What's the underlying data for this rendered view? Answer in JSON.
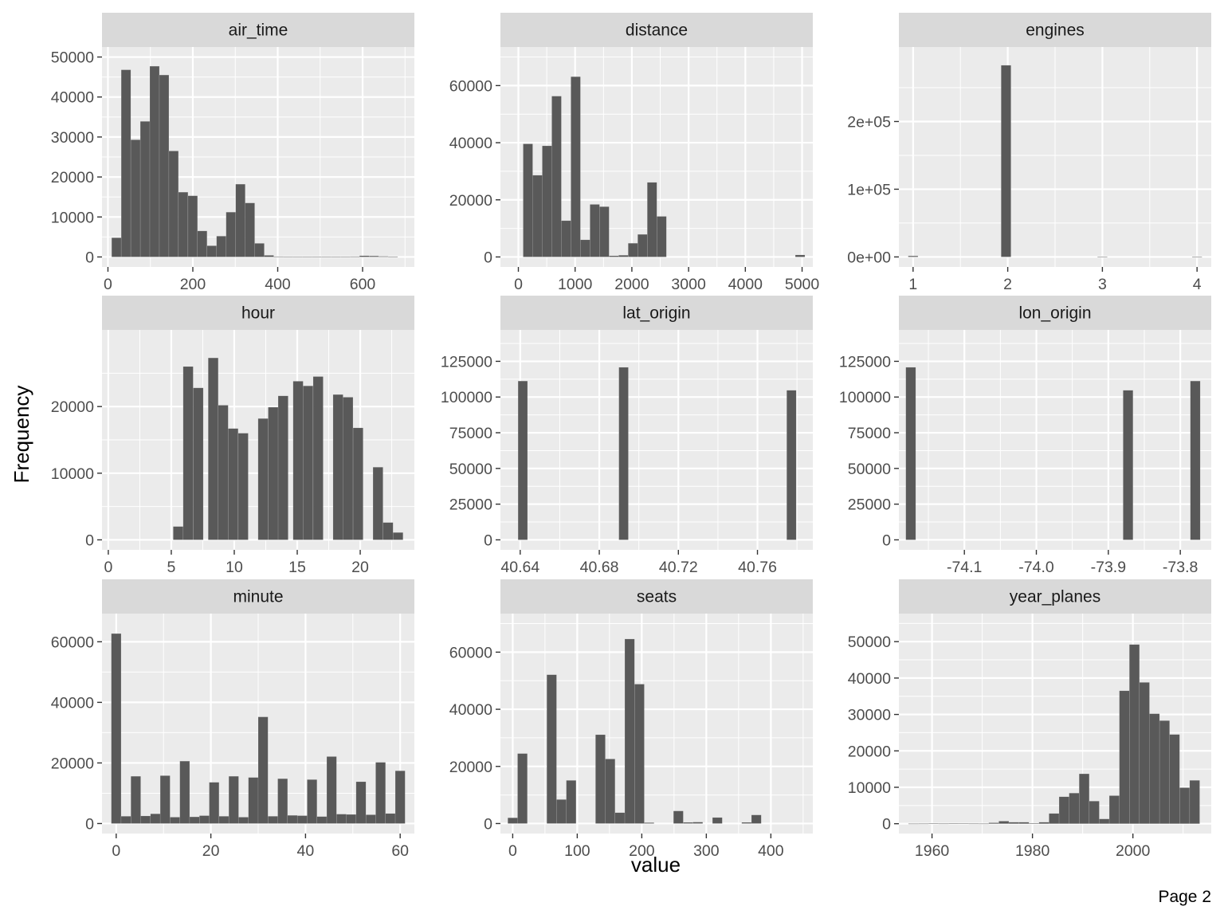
{
  "page_label": "Page 2",
  "colors": {
    "panel_background": "#ebebeb",
    "strip_background": "#d9d9d9",
    "grid_major": "#ffffff",
    "bar_fill": "#595959",
    "text": "#1a1a1a",
    "tick_text": "#4d4d4d",
    "tick_mark": "#333333"
  },
  "chart_data": {
    "type": "bar",
    "subtype": "faceted-histogram",
    "xlabel": "value",
    "ylabel": "Frequency",
    "facets": [
      {
        "title": "air_time",
        "xlim": [
          -14,
          722
        ],
        "xticks": [
          0,
          200,
          400,
          600
        ],
        "xtick_labels": [
          "0",
          "200",
          "400",
          "600"
        ],
        "xminor": [
          100,
          300,
          500,
          700
        ],
        "ylim": [
          -2500,
          52500
        ],
        "yticks": [
          0,
          10000,
          20000,
          30000,
          40000,
          50000
        ],
        "ytick_labels": [
          "0",
          "10000",
          "20000",
          "30000",
          "40000",
          "50000"
        ],
        "yminor": [
          5000,
          15000,
          25000,
          35000,
          45000
        ],
        "bin_width": 22.45,
        "bins": [
          [
            20,
            4800
          ],
          [
            42.5,
            46800
          ],
          [
            65,
            29300
          ],
          [
            87.5,
            33900
          ],
          [
            109.9,
            47700
          ],
          [
            132.4,
            45500
          ],
          [
            154.8,
            26500
          ],
          [
            177.3,
            16200
          ],
          [
            199.8,
            15300
          ],
          [
            222.2,
            6500
          ],
          [
            244.7,
            2800
          ],
          [
            267.1,
            5200
          ],
          [
            289.6,
            11200
          ],
          [
            312.1,
            18200
          ],
          [
            334.5,
            13500
          ],
          [
            357,
            3400
          ],
          [
            379.4,
            400
          ],
          [
            401.9,
            100
          ],
          [
            424.3,
            60
          ],
          [
            446.8,
            40
          ],
          [
            469.3,
            30
          ],
          [
            491.7,
            20
          ],
          [
            514.2,
            20
          ],
          [
            536.6,
            30
          ],
          [
            559.1,
            60
          ],
          [
            581.6,
            100
          ],
          [
            604,
            300
          ],
          [
            626.5,
            250
          ],
          [
            648.9,
            150
          ],
          [
            671.4,
            80
          ]
        ]
      },
      {
        "title": "distance",
        "xlim": [
          -316,
          5189
        ],
        "xticks": [
          0,
          1000,
          2000,
          3000,
          4000,
          5000
        ],
        "xtick_labels": [
          "0",
          "1000",
          "2000",
          "3000",
          "4000",
          "5000"
        ],
        "xminor": [
          500,
          1500,
          2500,
          3500,
          4500
        ],
        "ylim": [
          -3500,
          73500
        ],
        "yticks": [
          0,
          20000,
          40000,
          60000
        ],
        "ytick_labels": [
          "0",
          "20000",
          "40000",
          "60000"
        ],
        "yminor": [
          10000,
          30000,
          50000,
          70000
        ],
        "bin_width": 168.3,
        "bins": [
          [
            168.3,
            39600
          ],
          [
            336.6,
            28600
          ],
          [
            504.9,
            38900
          ],
          [
            673.2,
            56300
          ],
          [
            841.5,
            12700
          ],
          [
            1009.8,
            63100
          ],
          [
            1178.1,
            6000
          ],
          [
            1346.4,
            18400
          ],
          [
            1514.7,
            17600
          ],
          [
            1683,
            400
          ],
          [
            1851.3,
            600
          ],
          [
            2019.6,
            4800
          ],
          [
            2187.9,
            7900
          ],
          [
            2356.2,
            26100
          ],
          [
            2524.5,
            14200
          ],
          [
            4964.9,
            700
          ]
        ]
      },
      {
        "title": "engines",
        "xlim": [
          0.85,
          4.15
        ],
        "xticks": [
          1,
          2,
          3,
          4
        ],
        "xtick_labels": [
          "1",
          "2",
          "3",
          "4"
        ],
        "xminor": [
          1.5,
          2.5,
          3.5
        ],
        "ylim": [
          -14800,
          310000
        ],
        "yticks": [
          0,
          100000,
          200000
        ],
        "ytick_labels": [
          "0e+00",
          "1e+05",
          "2e+05"
        ],
        "yminor": [
          50000,
          150000,
          250000
        ],
        "bin_width": 0.1034,
        "bins": [
          [
            1,
            1500
          ],
          [
            1.9821,
            283000
          ],
          [
            3,
            200
          ],
          [
            4,
            120
          ]
        ]
      },
      {
        "title": "hour",
        "xlim": [
          -0.5,
          24.3
        ],
        "xticks": [
          0,
          5,
          10,
          15,
          20
        ],
        "xtick_labels": [
          "0",
          "5",
          "10",
          "15",
          "20"
        ],
        "xminor": [
          2.5,
          7.5,
          12.5,
          17.5,
          22.5
        ],
        "ylim": [
          -1500,
          31500
        ],
        "yticks": [
          0,
          10000,
          20000
        ],
        "ytick_labels": [
          "0",
          "10000",
          "20000"
        ],
        "yminor": [
          5000,
          15000,
          25000
        ],
        "bin_width": 0.7931,
        "bins": [
          [
            5.55,
            2000
          ],
          [
            6.34,
            26000
          ],
          [
            7.14,
            22800
          ],
          [
            8.33,
            27300
          ],
          [
            9.12,
            20200
          ],
          [
            9.91,
            16700
          ],
          [
            10.71,
            16000
          ],
          [
            12.29,
            18200
          ],
          [
            13.09,
            19900
          ],
          [
            13.88,
            21600
          ],
          [
            15.07,
            23800
          ],
          [
            15.86,
            23100
          ],
          [
            16.66,
            24500
          ],
          [
            18.24,
            21800
          ],
          [
            19.03,
            21400
          ],
          [
            19.83,
            16800
          ],
          [
            21.41,
            10900
          ],
          [
            22.21,
            2600
          ],
          [
            23,
            1100
          ]
        ]
      },
      {
        "title": "lat_origin",
        "xlim": [
          40.63,
          40.788
        ],
        "xticks": [
          40.64,
          40.68,
          40.72,
          40.76
        ],
        "xtick_labels": [
          "40.64",
          "40.68",
          "40.72",
          "40.76"
        ],
        "xminor": [
          40.66,
          40.7,
          40.74,
          40.78
        ],
        "ylim": [
          -7000,
          147000
        ],
        "yticks": [
          0,
          25000,
          50000,
          75000,
          100000,
          125000
        ],
        "ytick_labels": [
          "0",
          "25000",
          "50000",
          "75000",
          "100000",
          "125000"
        ],
        "yminor": [
          12500,
          37500,
          62500,
          87500,
          112500,
          137500
        ],
        "bin_width": 0.00478,
        "bins": [
          [
            40.6413,
            111200
          ],
          [
            40.6923,
            120800
          ],
          [
            40.7772,
            104700
          ]
        ]
      },
      {
        "title": "lon_origin",
        "xlim": [
          -74.191,
          -73.757
        ],
        "xticks": [
          -74.1,
          -74,
          -73.9,
          -73.8
        ],
        "xtick_labels": [
          "-74.1",
          "-74.0",
          "-73.9",
          "-73.8"
        ],
        "xminor": [
          -74.15,
          -74.05,
          -73.95,
          -73.85,
          -73.75
        ],
        "ylim": [
          -7000,
          147000
        ],
        "yticks": [
          0,
          25000,
          50000,
          75000,
          100000,
          125000
        ],
        "ytick_labels": [
          "0",
          "25000",
          "50000",
          "75000",
          "100000",
          "125000"
        ],
        "yminor": [
          12500,
          37500,
          62500,
          87500,
          112500,
          137500
        ],
        "bin_width": 0.0137,
        "bins": [
          [
            -74.1745,
            120800
          ],
          [
            -73.8726,
            104700
          ],
          [
            -73.7792,
            111200
          ]
        ]
      },
      {
        "title": "minute",
        "xlim": [
          -3,
          63
        ],
        "xticks": [
          0,
          20,
          40,
          60
        ],
        "xtick_labels": [
          "0",
          "20",
          "40",
          "60"
        ],
        "xminor": [
          10,
          30,
          50
        ],
        "ylim": [
          -3300,
          69300
        ],
        "yticks": [
          0,
          20000,
          40000,
          60000
        ],
        "ytick_labels": [
          "0",
          "20000",
          "40000",
          "60000"
        ],
        "yminor": [
          10000,
          30000,
          50000
        ],
        "bin_width": 2.07,
        "bins": [
          [
            0,
            62700
          ],
          [
            2.07,
            2400
          ],
          [
            4.14,
            15600
          ],
          [
            6.21,
            2500
          ],
          [
            8.28,
            3200
          ],
          [
            10.34,
            15800
          ],
          [
            12.41,
            2100
          ],
          [
            14.48,
            20600
          ],
          [
            16.55,
            2200
          ],
          [
            18.62,
            2600
          ],
          [
            20.69,
            13600
          ],
          [
            22.76,
            2400
          ],
          [
            24.83,
            15600
          ],
          [
            26.9,
            2100
          ],
          [
            28.97,
            15200
          ],
          [
            31.03,
            35200
          ],
          [
            33.1,
            2400
          ],
          [
            35.17,
            14800
          ],
          [
            37.24,
            2700
          ],
          [
            39.31,
            2600
          ],
          [
            41.38,
            14500
          ],
          [
            43.45,
            2300
          ],
          [
            45.52,
            22100
          ],
          [
            47.59,
            3100
          ],
          [
            49.66,
            3000
          ],
          [
            51.72,
            13800
          ],
          [
            53.79,
            2900
          ],
          [
            55.86,
            20200
          ],
          [
            57.93,
            3300
          ],
          [
            60,
            17400
          ]
        ]
      },
      {
        "title": "seats",
        "xlim": [
          -19,
          465
        ],
        "xticks": [
          0,
          100,
          200,
          300,
          400
        ],
        "xtick_labels": [
          "0",
          "100",
          "200",
          "300",
          "400"
        ],
        "xminor": [
          50,
          150,
          250,
          350,
          450
        ],
        "ylim": [
          -3500,
          73500
        ],
        "yticks": [
          0,
          20000,
          40000,
          60000
        ],
        "ytick_labels": [
          "0",
          "20000",
          "40000",
          "60000"
        ],
        "yminor": [
          10000,
          30000,
          50000,
          70000
        ],
        "bin_width": 15.1,
        "bins": [
          [
            0,
            2000
          ],
          [
            15.1,
            24500
          ],
          [
            60.4,
            52100
          ],
          [
            75.5,
            8400
          ],
          [
            90.6,
            15100
          ],
          [
            135.9,
            31100
          ],
          [
            151,
            22600
          ],
          [
            166.1,
            3800
          ],
          [
            181.2,
            64600
          ],
          [
            196.3,
            48800
          ],
          [
            211.4,
            300
          ],
          [
            256.7,
            4400
          ],
          [
            271.8,
            400
          ],
          [
            286.9,
            500
          ],
          [
            317.1,
            2100
          ],
          [
            362.4,
            400
          ],
          [
            377.5,
            3000
          ]
        ]
      },
      {
        "title": "year_planes",
        "xlim": [
          1953.4,
          2015.6
        ],
        "xticks": [
          1960,
          1980,
          2000
        ],
        "xtick_labels": [
          "1960",
          "1980",
          "2000"
        ],
        "xminor": [
          1970,
          1990,
          2010
        ],
        "ylim": [
          -2700,
          57700
        ],
        "yticks": [
          0,
          10000,
          20000,
          30000,
          40000,
          50000
        ],
        "ytick_labels": [
          "0",
          "10000",
          "20000",
          "30000",
          "40000",
          "50000"
        ],
        "yminor": [
          5000,
          15000,
          25000,
          35000,
          45000,
          55000
        ],
        "bin_width": 2,
        "bins": [
          [
            1956.3,
            20
          ],
          [
            1958.3,
            30
          ],
          [
            1960.3,
            60
          ],
          [
            1962.3,
            40
          ],
          [
            1964.3,
            60
          ],
          [
            1966.3,
            100
          ],
          [
            1968.3,
            40
          ],
          [
            1970.3,
            30
          ],
          [
            1972.3,
            250
          ],
          [
            1974.3,
            700
          ],
          [
            1976.3,
            400
          ],
          [
            1978.3,
            400
          ],
          [
            1980.3,
            150
          ],
          [
            1982.3,
            400
          ],
          [
            1984.3,
            2800
          ],
          [
            1986.3,
            7400
          ],
          [
            1988.3,
            8400
          ],
          [
            1990.3,
            13700
          ],
          [
            1992.3,
            6200
          ],
          [
            1994.3,
            1300
          ],
          [
            1996.3,
            7700
          ],
          [
            1998.3,
            36500
          ],
          [
            2000.3,
            49200
          ],
          [
            2002.3,
            38800
          ],
          [
            2004.3,
            30200
          ],
          [
            2006.3,
            28300
          ],
          [
            2008.3,
            24500
          ],
          [
            2010.3,
            9900
          ],
          [
            2012.3,
            11900
          ]
        ]
      }
    ]
  }
}
